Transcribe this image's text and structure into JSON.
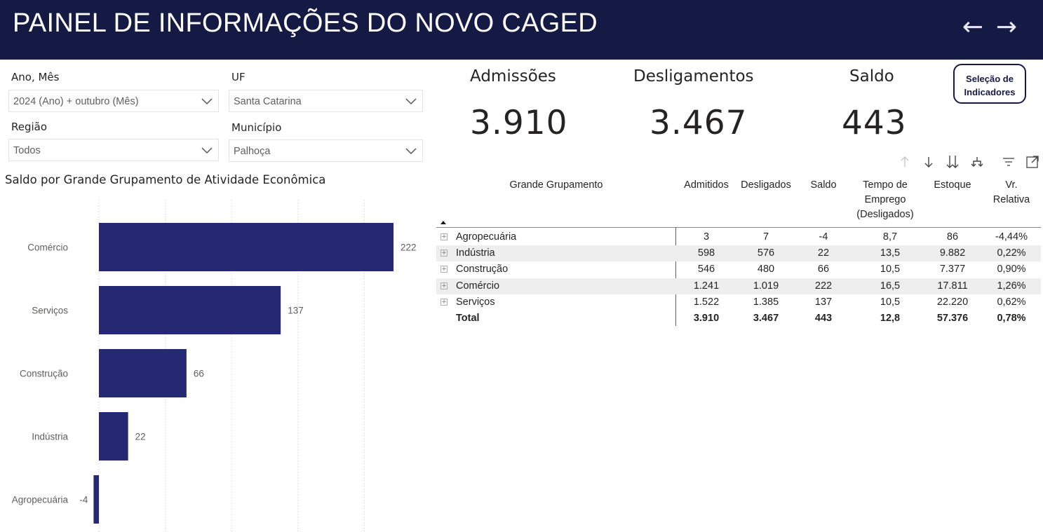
{
  "header": {
    "title": "PAINEL DE INFORMAÇÕES DO NOVO CAGED",
    "back_icon": "arrow-left-icon",
    "forward_icon": "arrow-right-icon"
  },
  "filters": {
    "ano_mes": {
      "label": "Ano, Mês",
      "value": "2024 (Ano) + outubro (Mês)"
    },
    "uf": {
      "label": "UF",
      "value": "Santa Catarina"
    },
    "regiao": {
      "label": "Região",
      "value": "Todos"
    },
    "municipio": {
      "label": "Município",
      "value": "Palhoça"
    }
  },
  "kpis": {
    "admissoes": {
      "label": "Admissões",
      "value": "3.910"
    },
    "desligamentos": {
      "label": "Desligamentos",
      "value": "3.467"
    },
    "saldo": {
      "label": "Saldo",
      "value": "443"
    }
  },
  "indicator_button": {
    "line1": "Seleção de",
    "line2": "Indicadores"
  },
  "colors": {
    "header_bg": "#141a43",
    "bar": "#252872",
    "row_band": "#eeeeee"
  },
  "chart_data": {
    "type": "bar",
    "orientation": "horizontal",
    "title": "Saldo por Grande Grupamento de Atividade Econômica",
    "categories": [
      "Comércio",
      "Serviços",
      "Construção",
      "Indústria",
      "Agropecuária"
    ],
    "values": [
      222,
      137,
      66,
      22,
      -4
    ],
    "data_labels": [
      "222",
      "137",
      "66",
      "22",
      "-4"
    ],
    "xlabel": "",
    "ylabel": "",
    "grid": true
  },
  "table_toolbar": [
    "sort-up-icon",
    "sort-down-icon",
    "expand-all-icon",
    "hierarchy-icon",
    "filter-icon",
    "focus-mode-icon"
  ],
  "table": {
    "columns": [
      "Grande Grupamento",
      "Admitidos",
      "Desligados",
      "Saldo",
      "Tempo de Emprego (Desligados)",
      "Estoque",
      "Vr. Relativa"
    ],
    "tempo_lines": [
      "Tempo de",
      "Emprego",
      "(Desligados)"
    ],
    "vr_lines": [
      "Vr.",
      "Relativa"
    ],
    "rows": [
      {
        "name": "Agropecuária",
        "admitidos": "3",
        "desligados": "7",
        "saldo": "-4",
        "tempo": "8,7",
        "estoque": "86",
        "vr": "-4,44%"
      },
      {
        "name": "Indústria",
        "admitidos": "598",
        "desligados": "576",
        "saldo": "22",
        "tempo": "13,5",
        "estoque": "9.882",
        "vr": "0,22%"
      },
      {
        "name": "Construção",
        "admitidos": "546",
        "desligados": "480",
        "saldo": "66",
        "tempo": "10,5",
        "estoque": "7.377",
        "vr": "0,90%"
      },
      {
        "name": "Comércio",
        "admitidos": "1.241",
        "desligados": "1.019",
        "saldo": "222",
        "tempo": "16,5",
        "estoque": "17.811",
        "vr": "1,26%"
      },
      {
        "name": "Serviços",
        "admitidos": "1.522",
        "desligados": "1.385",
        "saldo": "137",
        "tempo": "10,5",
        "estoque": "22.220",
        "vr": "0,62%"
      }
    ],
    "total": {
      "name": "Total",
      "admitidos": "3.910",
      "desligados": "3.467",
      "saldo": "443",
      "tempo": "12,8",
      "estoque": "57.376",
      "vr": "0,78%"
    }
  }
}
